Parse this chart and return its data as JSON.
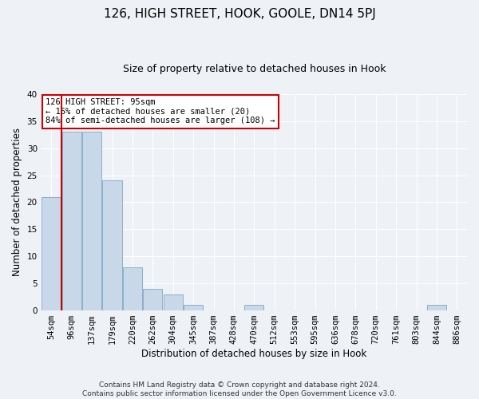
{
  "title": "126, HIGH STREET, HOOK, GOOLE, DN14 5PJ",
  "subtitle": "Size of property relative to detached houses in Hook",
  "xlabel": "Distribution of detached houses by size in Hook",
  "ylabel": "Number of detached properties",
  "bar_labels": [
    "54sqm",
    "96sqm",
    "137sqm",
    "179sqm",
    "220sqm",
    "262sqm",
    "304sqm",
    "345sqm",
    "387sqm",
    "428sqm",
    "470sqm",
    "512sqm",
    "553sqm",
    "595sqm",
    "636sqm",
    "678sqm",
    "720sqm",
    "761sqm",
    "803sqm",
    "844sqm",
    "886sqm"
  ],
  "bar_values": [
    21,
    33,
    33,
    24,
    8,
    4,
    3,
    1,
    0,
    0,
    1,
    0,
    0,
    0,
    0,
    0,
    0,
    0,
    0,
    1,
    0
  ],
  "bar_color": "#c8d8e8",
  "bar_edge_color": "#8ab0cc",
  "ylim": [
    0,
    40
  ],
  "yticks": [
    0,
    5,
    10,
    15,
    20,
    25,
    30,
    35,
    40
  ],
  "red_line_index": 1,
  "annotation_line1": "126 HIGH STREET: 95sqm",
  "annotation_line2": "← 16% of detached houses are smaller (20)",
  "annotation_line3": "84% of semi-detached houses are larger (108) →",
  "annotation_box_color": "#ffffff",
  "annotation_edge_color": "#cc0000",
  "footnote": "Contains HM Land Registry data © Crown copyright and database right 2024.\nContains public sector information licensed under the Open Government Licence v3.0.",
  "background_color": "#eef2f7",
  "grid_color": "#ffffff",
  "title_fontsize": 11,
  "subtitle_fontsize": 9,
  "axis_label_fontsize": 8.5,
  "tick_fontsize": 7.5,
  "footnote_fontsize": 6.5
}
